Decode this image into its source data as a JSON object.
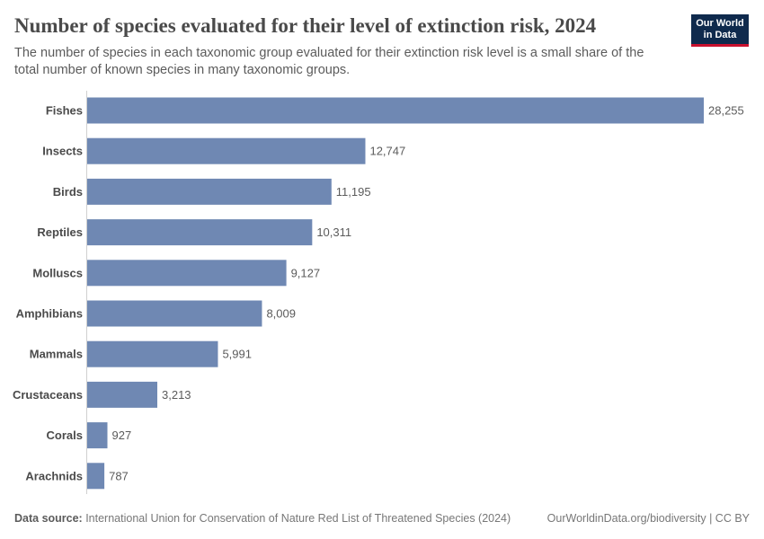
{
  "header": {
    "title": "Number of species evaluated for their level of extinction risk, 2024",
    "subtitle": "The number of species in each taxonomic group evaluated for their extinction risk level is a small share of the total number of known species in many taxonomic groups.",
    "logo_line1": "Our World",
    "logo_line2": "in Data"
  },
  "footer": {
    "source_label": "Data source:",
    "source_text": " International Union for Conservation of Nature Red List of Threatened Species (2024)",
    "right_text": "OurWorldinData.org/biodiversity | CC BY"
  },
  "colors": {
    "bar": "#6f88b3",
    "axis": "#d0d0d0"
  },
  "chart_data": {
    "type": "bar",
    "orientation": "horizontal",
    "title": "Number of species evaluated for their level of extinction risk, 2024",
    "categories": [
      "Fishes",
      "Insects",
      "Birds",
      "Reptiles",
      "Molluscs",
      "Amphibians",
      "Mammals",
      "Crustaceans",
      "Corals",
      "Arachnids"
    ],
    "values": [
      28255,
      12747,
      11195,
      10311,
      9127,
      8009,
      5991,
      3213,
      927,
      787
    ],
    "value_labels": [
      "28,255",
      "12,747",
      "11,195",
      "10,311",
      "9,127",
      "8,009",
      "5,991",
      "3,213",
      "927",
      "787"
    ],
    "xlim": [
      0,
      28255
    ],
    "xlabel": "",
    "ylabel": ""
  }
}
